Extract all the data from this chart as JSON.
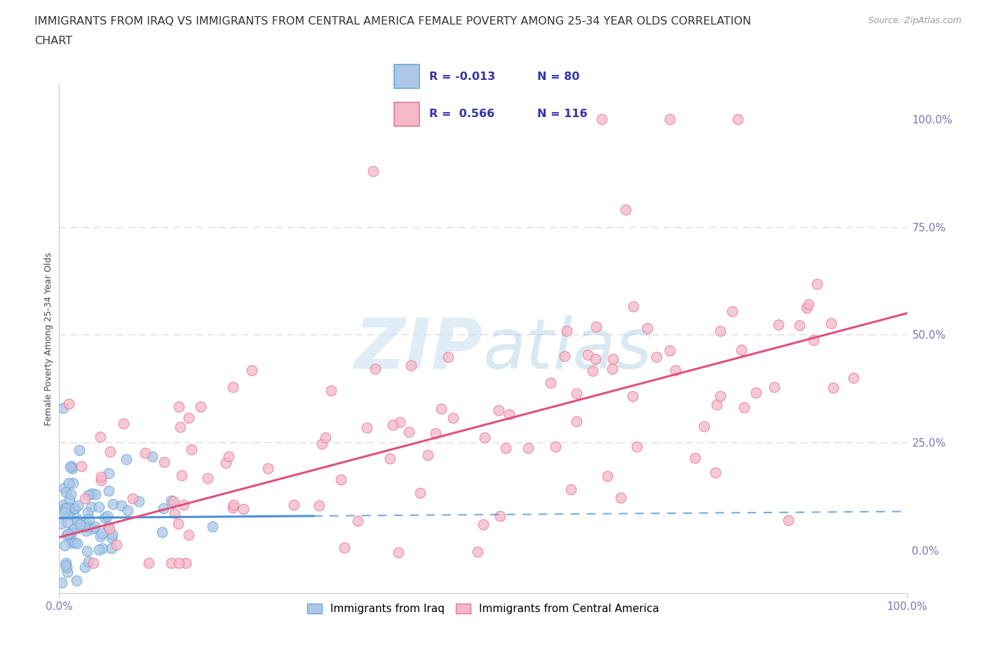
{
  "title_line1": "IMMIGRANTS FROM IRAQ VS IMMIGRANTS FROM CENTRAL AMERICA FEMALE POVERTY AMONG 25-34 YEAR OLDS CORRELATION",
  "title_line2": "CHART",
  "source_text": "Source: ZipAtlas.com",
  "ylabel": "Female Poverty Among 25-34 Year Olds",
  "iraq_color": "#aec6e8",
  "iraq_edge_color": "#6aaad4",
  "iraq_line_color": "#4a90d9",
  "ca_color": "#f5b8c8",
  "ca_edge_color": "#e8789a",
  "ca_line_color": "#e0507a",
  "watermark_color": "#c8dff0",
  "title_fontsize": 11.5,
  "axis_label_fontsize": 9,
  "tick_fontsize": 11,
  "legend_fontsize": 12,
  "background_color": "#ffffff",
  "iraq_R": -0.013,
  "iraq_N": 80,
  "ca_R": 0.566,
  "ca_N": 116,
  "xlim": [
    0,
    100
  ],
  "ylim": [
    -10,
    108
  ],
  "grid_color": "#d8d8e8",
  "spine_color": "#cccccc",
  "tick_color": "#7777bb",
  "legend_text_color": "#3333aa",
  "ca_slope": 0.52,
  "ca_intercept": 3.0,
  "iraq_slope": 0.015,
  "iraq_intercept": 7.5
}
